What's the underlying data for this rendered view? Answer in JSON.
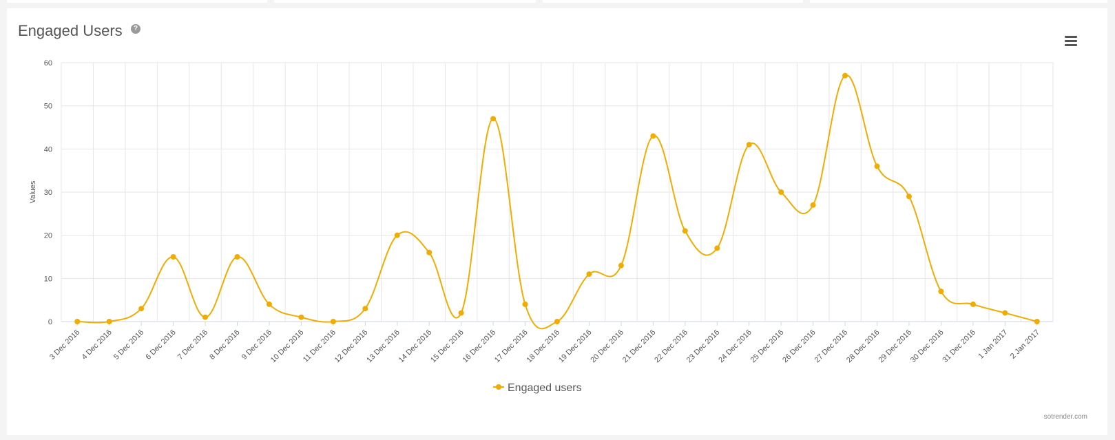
{
  "title": "Engaged Users",
  "help_icon": "?",
  "menu_icon": "hamburger-menu-icon",
  "credit": "sotrender.com",
  "colors": {
    "series": "#f0ac00",
    "grid": "#e6e6e6",
    "axis": "#ccd6eb",
    "text": "#555555"
  },
  "chart_data": {
    "type": "line",
    "title": "Engaged Users",
    "ylabel": "Values",
    "xlabel": "",
    "ylim": [
      0,
      60
    ],
    "yticks": [
      0,
      10,
      20,
      30,
      40,
      50,
      60
    ],
    "grid": true,
    "legend": "bottom-center",
    "categories": [
      "3 Dec 2016",
      "4 Dec 2016",
      "5 Dec 2016",
      "6 Dec 2016",
      "7 Dec 2016",
      "8 Dec 2016",
      "9 Dec 2016",
      "10 Dec 2016",
      "11 Dec 2016",
      "12 Dec 2016",
      "13 Dec 2016",
      "14 Dec 2016",
      "15 Dec 2016",
      "16 Dec 2016",
      "17 Dec 2016",
      "18 Dec 2016",
      "19 Dec 2016",
      "20 Dec 2016",
      "21 Dec 2016",
      "22 Dec 2016",
      "23 Dec 2016",
      "24 Dec 2016",
      "25 Dec 2016",
      "26 Dec 2016",
      "27 Dec 2016",
      "28 Dec 2016",
      "29 Dec 2016",
      "30 Dec 2016",
      "31 Dec 2016",
      "1 Jan 2017",
      "2 Jan 2017"
    ],
    "series": [
      {
        "name": "Engaged users",
        "values": [
          0,
          0,
          3,
          15,
          1,
          15,
          4,
          1,
          0,
          3,
          20,
          16,
          2,
          47,
          4,
          0,
          11,
          13,
          43,
          21,
          17,
          41,
          30,
          27,
          57,
          36,
          29,
          7,
          4,
          2,
          0
        ]
      }
    ]
  }
}
